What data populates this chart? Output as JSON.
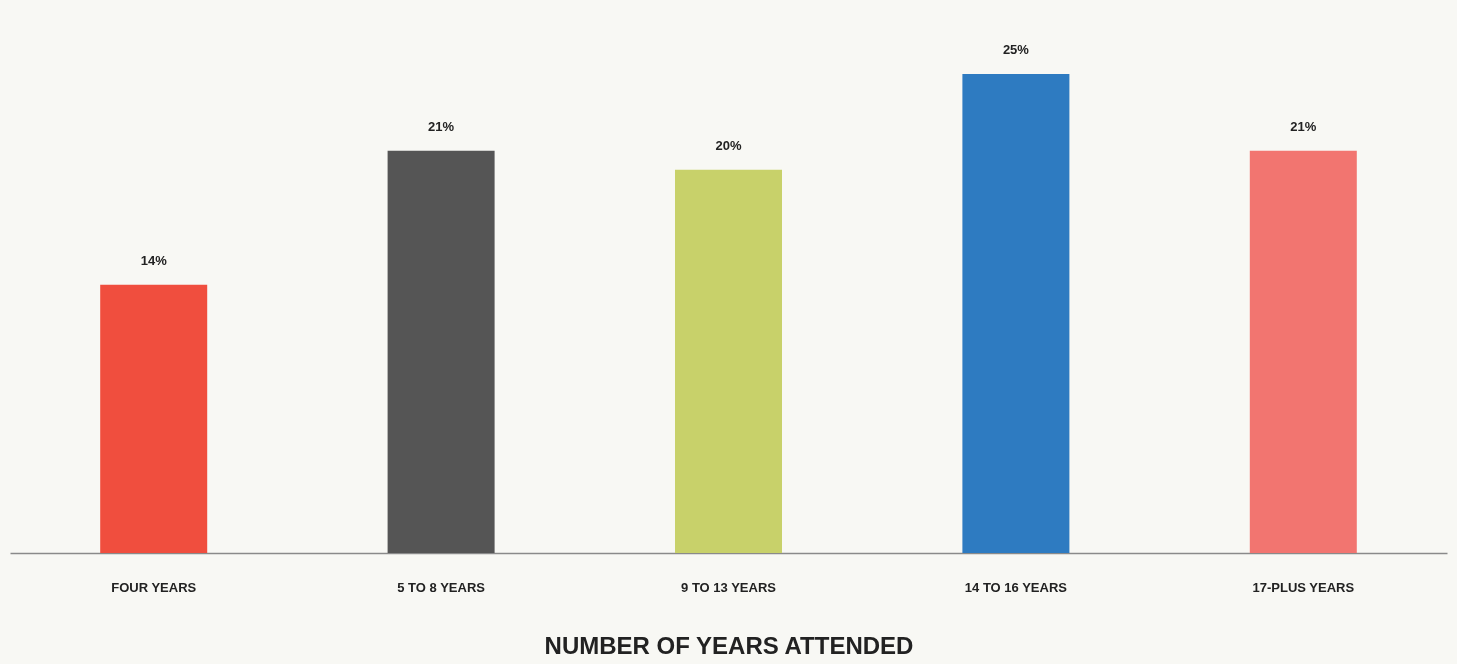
{
  "chart_data": {
    "type": "bar",
    "xlabel": "NUMBER OF YEARS ATTENDED",
    "categories": [
      "FOUR YEARS",
      "5 TO 8 YEARS",
      "9 TO 13 YEARS",
      "14 TO 16 YEARS",
      "17-PLUS YEARS"
    ],
    "values": [
      14,
      21,
      20,
      25,
      21
    ],
    "colors": [
      "#f04e3e",
      "#555555",
      "#c8d16a",
      "#2e7bc1",
      "#f27570"
    ],
    "value_labels": [
      "14%",
      "21%",
      "20%",
      "25%",
      "21%"
    ]
  }
}
